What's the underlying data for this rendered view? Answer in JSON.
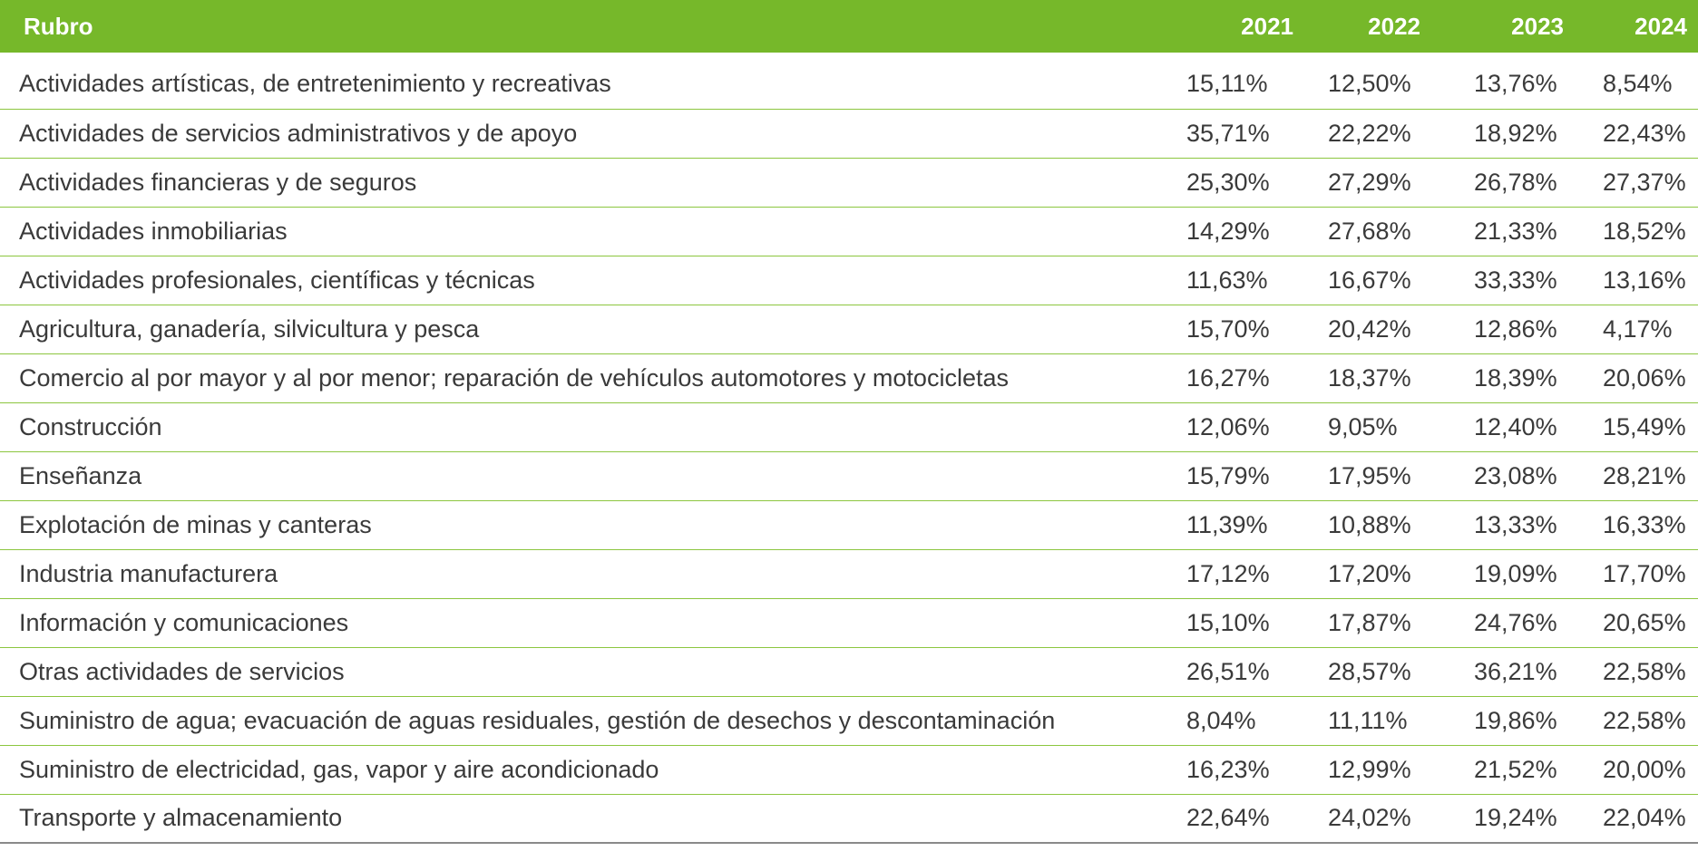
{
  "table": {
    "header": {
      "rubro": "Rubro",
      "years": [
        "2021",
        "2022",
        "2023",
        "2024"
      ]
    },
    "colors": {
      "header_bg": "#76b82a",
      "header_text": "#ffffff",
      "row_divider": "#8cc63f",
      "bottom_rule": "#8a8a8a"
    },
    "rows": [
      {
        "rubro": "Actividades artísticas, de entretenimiento y recreativas",
        "values": [
          "15,11%",
          "12,50%",
          "13,76%",
          "8,54%"
        ]
      },
      {
        "rubro": "Actividades de servicios administrativos y de apoyo",
        "values": [
          "35,71%",
          "22,22%",
          "18,92%",
          "22,43%"
        ]
      },
      {
        "rubro": "Actividades financieras y de seguros",
        "values": [
          "25,30%",
          "27,29%",
          "26,78%",
          "27,37%"
        ]
      },
      {
        "rubro": "Actividades inmobiliarias",
        "values": [
          "14,29%",
          "27,68%",
          "21,33%",
          "18,52%"
        ]
      },
      {
        "rubro": "Actividades profesionales, científicas y técnicas",
        "values": [
          "11,63%",
          "16,67%",
          "33,33%",
          "13,16%"
        ]
      },
      {
        "rubro": "Agricultura, ganadería, silvicultura y pesca",
        "values": [
          "15,70%",
          "20,42%",
          "12,86%",
          "4,17%"
        ]
      },
      {
        "rubro": "Comercio al por mayor y al por menor; reparación de vehículos automotores y motocicletas",
        "values": [
          "16,27%",
          "18,37%",
          "18,39%",
          "20,06%"
        ]
      },
      {
        "rubro": "Construcción",
        "values": [
          "12,06%",
          "9,05%",
          "12,40%",
          "15,49%"
        ]
      },
      {
        "rubro": "Enseñanza",
        "values": [
          "15,79%",
          "17,95%",
          "23,08%",
          "28,21%"
        ]
      },
      {
        "rubro": "Explotación de minas y canteras",
        "values": [
          "11,39%",
          "10,88%",
          "13,33%",
          "16,33%"
        ]
      },
      {
        "rubro": "Industria manufacturera",
        "values": [
          "17,12%",
          "17,20%",
          "19,09%",
          "17,70%"
        ]
      },
      {
        "rubro": "Información y comunicaciones",
        "values": [
          "15,10%",
          "17,87%",
          "24,76%",
          "20,65%"
        ]
      },
      {
        "rubro": "Otras actividades de servicios",
        "values": [
          "26,51%",
          "28,57%",
          "36,21%",
          "22,58%"
        ]
      },
      {
        "rubro": "Suministro de agua; evacuación de aguas residuales, gestión de desechos y descontaminación",
        "values": [
          "8,04%",
          "11,11%",
          "19,86%",
          "22,58%"
        ]
      },
      {
        "rubro": "Suministro de electricidad, gas, vapor y aire acondicionado",
        "values": [
          "16,23%",
          "12,99%",
          "21,52%",
          "20,00%"
        ]
      },
      {
        "rubro": "Transporte y almacenamiento",
        "values": [
          "22,64%",
          "24,02%",
          "19,24%",
          "22,04%"
        ]
      }
    ]
  }
}
